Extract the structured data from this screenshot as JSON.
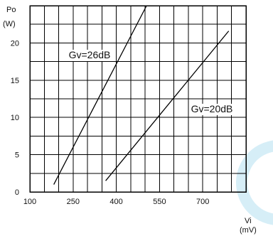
{
  "chart_data": {
    "type": "line",
    "title": "",
    "xlabel": {
      "name": "Vi",
      "unit": "(mV)"
    },
    "ylabel": {
      "name": "Po",
      "unit": "(W)"
    },
    "xlim": [
      100,
      850
    ],
    "ylim": [
      0,
      25
    ],
    "grid": true,
    "x_ticks": [
      100,
      250,
      400,
      550,
      700
    ],
    "x_tick_labels": [
      "100",
      "250",
      "400",
      "550",
      "700"
    ],
    "y_ticks": [
      0,
      5,
      10,
      15,
      20
    ],
    "y_tick_labels": [
      "0",
      "5",
      "10",
      "15",
      "20"
    ],
    "series": [
      {
        "name": "Gv=26dB",
        "x": [
          183,
          505
        ],
        "y": [
          1.0,
          25.0
        ],
        "color": "#000000"
      },
      {
        "name": "Gv=20dB",
        "x": [
          363,
          790
        ],
        "y": [
          1.5,
          21.6
        ],
        "color": "#000000"
      }
    ]
  },
  "watermark_color": "#d6eef7"
}
